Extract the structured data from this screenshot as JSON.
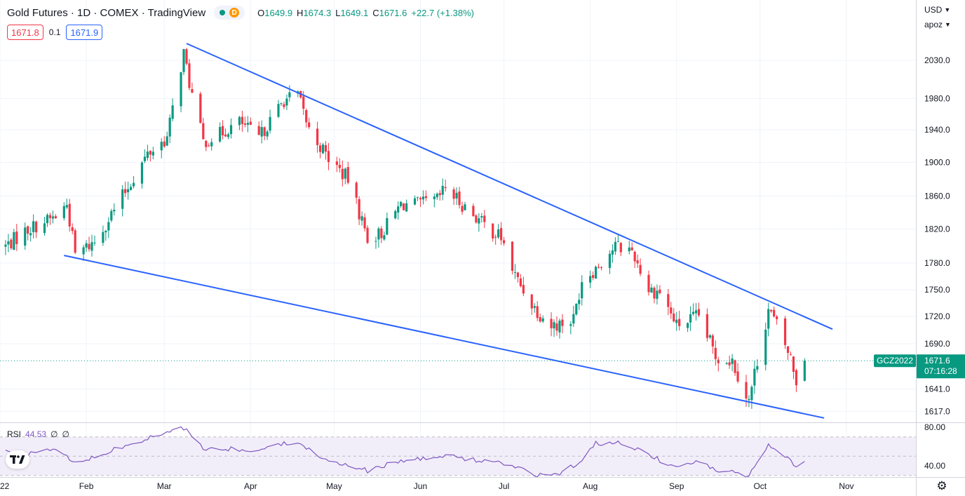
{
  "header": {
    "title": "Gold Futures · 1D · COMEX · TradingView",
    "badge_letter": "D",
    "ohlc": {
      "o_label": "O",
      "o": "1649.9",
      "h_label": "H",
      "h": "1674.3",
      "l_label": "L",
      "l": "1649.1",
      "c_label": "C",
      "c": "1671.6",
      "change": "+22.7 (+1.38%)"
    }
  },
  "quote": {
    "sell": "1671.8",
    "spread": "0.1",
    "buy": "1671.9"
  },
  "price_scale": {
    "currency": "USD",
    "mode": "apoz"
  },
  "last_price": {
    "symbol": "GCZ2022",
    "price": "1671.6",
    "countdown": "07:16:28"
  },
  "rsi_legend": {
    "name": "RSI",
    "value": "44.53",
    "extra1": "∅",
    "extra2": "∅"
  },
  "colors": {
    "up": "#089981",
    "down": "#f23645",
    "trendline": "#2962ff",
    "rsi": "#7e57c2",
    "rsi_band": "#ede7f6"
  },
  "icons": {
    "logo": "tradingview-logo-icon",
    "settings": "gear-icon"
  },
  "chart_data": [
    {
      "type": "candlestick",
      "y_ticks": [
        1617.0,
        1641.0,
        1690.0,
        1720.0,
        1750.0,
        1780.0,
        1820.0,
        1860.0,
        1900.0,
        1940.0,
        1980.0,
        2030.0
      ],
      "y_tick_labels": [
        "1617.0",
        "1641.0",
        "1690.0",
        "1720.0",
        "1750.0",
        "1780.0",
        "1820.0",
        "1860.0",
        "1900.0",
        "1940.0",
        "1980.0",
        "2030.0"
      ],
      "x_tick_labels": [
        "22",
        "Feb",
        "Mar",
        "Apr",
        "May",
        "Jun",
        "Jul",
        "Aug",
        "Sep",
        "Oct",
        "Nov"
      ],
      "x_tick_dates": [
        "2022-01-01",
        "2022-02-01",
        "2022-03-01",
        "2022-04-01",
        "2022-05-01",
        "2022-06-01",
        "2022-07-01",
        "2022-08-01",
        "2022-09-01",
        "2022-10-01",
        "2022-11-01"
      ],
      "anchors": [
        [
          "2022-01-03",
          1800
        ],
        [
          "2022-01-11",
          1820
        ],
        [
          "2022-01-21",
          1835
        ],
        [
          "2022-01-25",
          1850
        ],
        [
          "2022-01-28",
          1790
        ],
        [
          "2022-02-04",
          1805
        ],
        [
          "2022-02-14",
          1860
        ],
        [
          "2022-02-23",
          1910
        ],
        [
          "2022-03-02",
          1930
        ],
        [
          "2022-03-08",
          2040
        ],
        [
          "2022-03-10",
          2000
        ],
        [
          "2022-03-15",
          1925
        ],
        [
          "2022-03-21",
          1935
        ],
        [
          "2022-03-28",
          1950
        ],
        [
          "2022-04-04",
          1930
        ],
        [
          "2022-04-13",
          1978
        ],
        [
          "2022-04-18",
          1985
        ],
        [
          "2022-04-22",
          1940
        ],
        [
          "2022-04-29",
          1905
        ],
        [
          "2022-05-06",
          1880
        ],
        [
          "2022-05-13",
          1810
        ],
        [
          "2022-05-18",
          1815
        ],
        [
          "2022-05-25",
          1850
        ],
        [
          "2022-06-01",
          1850
        ],
        [
          "2022-06-07",
          1855
        ],
        [
          "2022-06-10",
          1870
        ],
        [
          "2022-06-16",
          1850
        ],
        [
          "2022-06-24",
          1825
        ],
        [
          "2022-06-30",
          1810
        ],
        [
          "2022-07-05",
          1765
        ],
        [
          "2022-07-12",
          1730
        ],
        [
          "2022-07-18",
          1710
        ],
        [
          "2022-07-21",
          1712
        ],
        [
          "2022-07-26",
          1717
        ],
        [
          "2022-07-29",
          1762
        ],
        [
          "2022-08-03",
          1775
        ],
        [
          "2022-08-10",
          1800
        ],
        [
          "2022-08-16",
          1795
        ],
        [
          "2022-08-22",
          1750
        ],
        [
          "2022-08-26",
          1748
        ],
        [
          "2022-09-01",
          1710
        ],
        [
          "2022-09-09",
          1720
        ],
        [
          "2022-09-15",
          1677
        ],
        [
          "2022-09-21",
          1672
        ],
        [
          "2022-09-27",
          1628
        ],
        [
          "2022-09-30",
          1672
        ],
        [
          "2022-10-04",
          1728
        ],
        [
          "2022-10-07",
          1710
        ],
        [
          "2022-10-12",
          1674
        ],
        [
          "2022-10-14",
          1650
        ],
        [
          "2022-10-17",
          1671.6
        ]
      ],
      "last_bar": {
        "date": "2022-10-17",
        "open": 1649.9,
        "high": 1674.3,
        "low": 1649.1,
        "close": 1671.6
      },
      "trendlines": [
        {
          "from": [
            "2022-03-09",
            2052
          ],
          "to": [
            "2022-10-27",
            1706
          ]
        },
        {
          "from": [
            "2022-01-24",
            1789
          ],
          "to": [
            "2022-10-24",
            1610
          ]
        }
      ]
    },
    {
      "type": "line",
      "y_ticks": [
        40.0,
        80.0
      ],
      "y_tick_labels": [
        "40.00",
        "80.00"
      ],
      "band": [
        30,
        70
      ],
      "mid": 50,
      "anchors": [
        [
          "2022-01-03",
          55
        ],
        [
          "2022-01-11",
          52
        ],
        [
          "2022-01-21",
          58
        ],
        [
          "2022-01-28",
          42
        ],
        [
          "2022-02-04",
          49
        ],
        [
          "2022-02-14",
          60
        ],
        [
          "2022-02-23",
          68
        ],
        [
          "2022-03-08",
          79
        ],
        [
          "2022-03-15",
          58
        ],
        [
          "2022-03-28",
          57
        ],
        [
          "2022-04-04",
          55
        ],
        [
          "2022-04-13",
          64
        ],
        [
          "2022-04-18",
          65
        ],
        [
          "2022-04-29",
          45
        ],
        [
          "2022-05-13",
          35
        ],
        [
          "2022-05-25",
          45
        ],
        [
          "2022-06-10",
          50
        ],
        [
          "2022-06-30",
          43
        ],
        [
          "2022-07-12",
          31
        ],
        [
          "2022-07-21",
          30
        ],
        [
          "2022-07-29",
          47
        ],
        [
          "2022-08-03",
          63
        ],
        [
          "2022-08-10",
          64
        ],
        [
          "2022-08-16",
          60
        ],
        [
          "2022-08-26",
          46
        ],
        [
          "2022-09-01",
          39
        ],
        [
          "2022-09-09",
          44
        ],
        [
          "2022-09-15",
          36
        ],
        [
          "2022-09-21",
          34
        ],
        [
          "2022-09-27",
          30
        ],
        [
          "2022-09-30",
          43
        ],
        [
          "2022-10-04",
          62
        ],
        [
          "2022-10-07",
          54
        ],
        [
          "2022-10-12",
          45
        ],
        [
          "2022-10-14",
          40
        ],
        [
          "2022-10-17",
          44.53
        ]
      ]
    }
  ]
}
